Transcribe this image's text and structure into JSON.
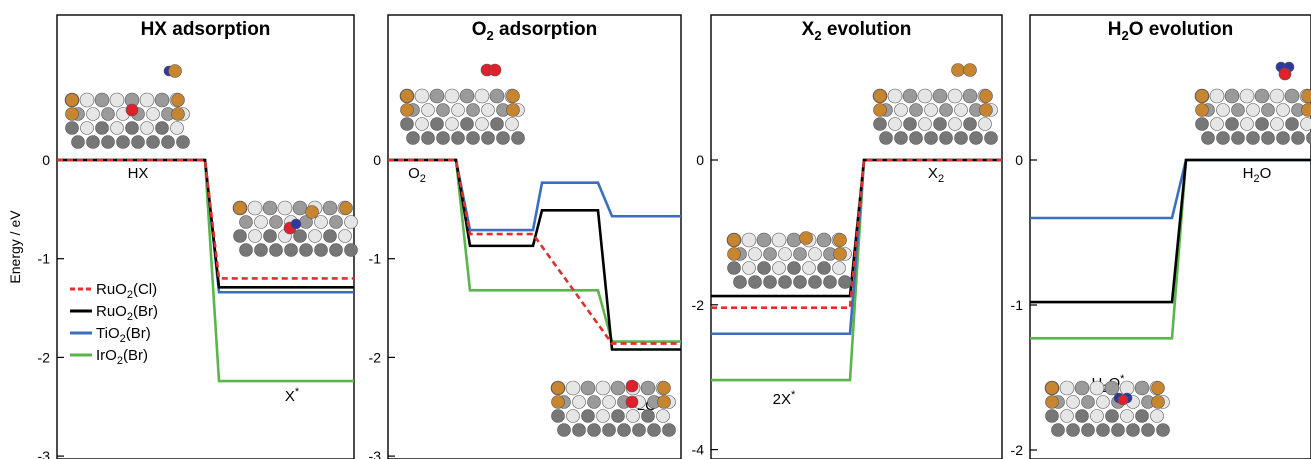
{
  "chart_data": {
    "type": "line",
    "ylabel": "Energy / eV",
    "legend": {
      "placement": "bottom-left of first panel",
      "entries": [
        {
          "base": "RuO",
          "sub": "2",
          "suffix": "(Cl)",
          "color": "#e0302a",
          "dash": true
        },
        {
          "base": "RuO",
          "sub": "2",
          "suffix": "(Br)",
          "color": "#000000",
          "dash": false
        },
        {
          "base": "TiO",
          "sub": "2",
          "suffix": "(Br)",
          "color": "#3a6fbf",
          "dash": false
        },
        {
          "base": "IrO",
          "sub": "2",
          "suffix": "(Br)",
          "color": "#5ab64a",
          "dash": false
        }
      ]
    },
    "series_colors": {
      "RuO2(Cl)": "#e0302a",
      "RuO2(Br)": "#000000",
      "TiO2(Br)": "#3a6fbf",
      "IrO2(Br)": "#5ab64a"
    },
    "atom_colors": {
      "gray": "#9a9a9a",
      "light": "#e6e6e6",
      "dark": "#777777",
      "orange": "#c8852f",
      "red": "#e0202a",
      "blue": "#2a3aa0"
    },
    "panels": [
      {
        "title": {
          "base": "HX adsorption",
          "sub": "",
          "rest": ""
        },
        "ylim": [
          -3,
          0.5
        ],
        "yticks": [
          0,
          -1,
          -2,
          -3
        ],
        "states": [
          {
            "label": {
              "base": "HX",
              "sup": "",
              "sub": ""
            }
          },
          {
            "label": {
              "base": "X",
              "sup": "*",
              "sub": ""
            }
          }
        ],
        "series": [
          {
            "name": "RuO2(Cl)",
            "values": [
              0,
              -1.2
            ]
          },
          {
            "name": "RuO2(Br)",
            "values": [
              0,
              -1.29
            ]
          },
          {
            "name": "TiO2(Br)",
            "values": [
              0,
              -1.34
            ]
          },
          {
            "name": "IrO2(Br)",
            "values": [
              0,
              -2.24
            ]
          }
        ]
      },
      {
        "title": {
          "base": "O",
          "sub": "2",
          "rest": " adsorption"
        },
        "ylim": [
          -3,
          0.5
        ],
        "yticks": [
          0,
          -1,
          -2,
          -3
        ],
        "states": [
          {
            "label": {
              "base": "O",
              "sup": "",
              "sub": "2"
            }
          },
          {
            "label": {
              "base": "",
              "sup": "",
              "sub": ""
            }
          },
          {
            "label": {
              "base": "",
              "sup": "",
              "sub": ""
            }
          },
          {
            "label": {
              "base": "2O",
              "sup": "*",
              "sub": ""
            }
          }
        ],
        "series": [
          {
            "name": "RuO2(Cl)",
            "values": [
              0,
              -0.75,
              null,
              -1.86
            ]
          },
          {
            "name": "RuO2(Br)",
            "values": [
              0,
              -0.87,
              -0.51,
              -1.92
            ]
          },
          {
            "name": "TiO2(Br)",
            "values": [
              0,
              -0.71,
              -0.23,
              -0.57
            ]
          },
          {
            "name": "IrO2(Br)",
            "values": [
              0,
              -1.32,
              -1.32,
              -1.84
            ]
          }
        ]
      },
      {
        "title": {
          "base": "X",
          "sub": "2",
          "rest": " evolution"
        },
        "ylim": [
          -4,
          1.5
        ],
        "yticks": [
          0,
          -2,
          -4
        ],
        "states": [
          {
            "label": {
              "base": "2X",
              "sup": "*",
              "sub": ""
            }
          },
          {
            "label": {
              "base": "X",
              "sup": "",
              "sub": "2"
            }
          }
        ],
        "series": [
          {
            "name": "RuO2(Cl)",
            "values": [
              -2.04,
              0
            ]
          },
          {
            "name": "RuO2(Br)",
            "values": [
              -1.88,
              0
            ]
          },
          {
            "name": "TiO2(Br)",
            "values": [
              -2.4,
              0
            ]
          },
          {
            "name": "IrO2(Br)",
            "values": [
              -3.04,
              0
            ]
          }
        ]
      },
      {
        "title": {
          "base": "H",
          "sub": "2",
          "rest": "O evolution"
        },
        "ylim": [
          -2,
          0.75
        ],
        "yticks": [
          0,
          -1,
          -2
        ],
        "states": [
          {
            "label": {
              "base": "H",
              "sup": "*",
              "sub": "2",
              "tail": "O"
            }
          },
          {
            "label": {
              "base": "H",
              "sup": "",
              "sub": "2",
              "tail": "O"
            }
          }
        ],
        "series": [
          {
            "name": "TiO2(Br)",
            "values": [
              -0.4,
              0
            ]
          },
          {
            "name": "RuO2(Br)",
            "values": [
              -0.98,
              0
            ]
          },
          {
            "name": "IrO2(Br)",
            "values": [
              -1.23,
              0
            ]
          }
        ]
      }
    ]
  }
}
